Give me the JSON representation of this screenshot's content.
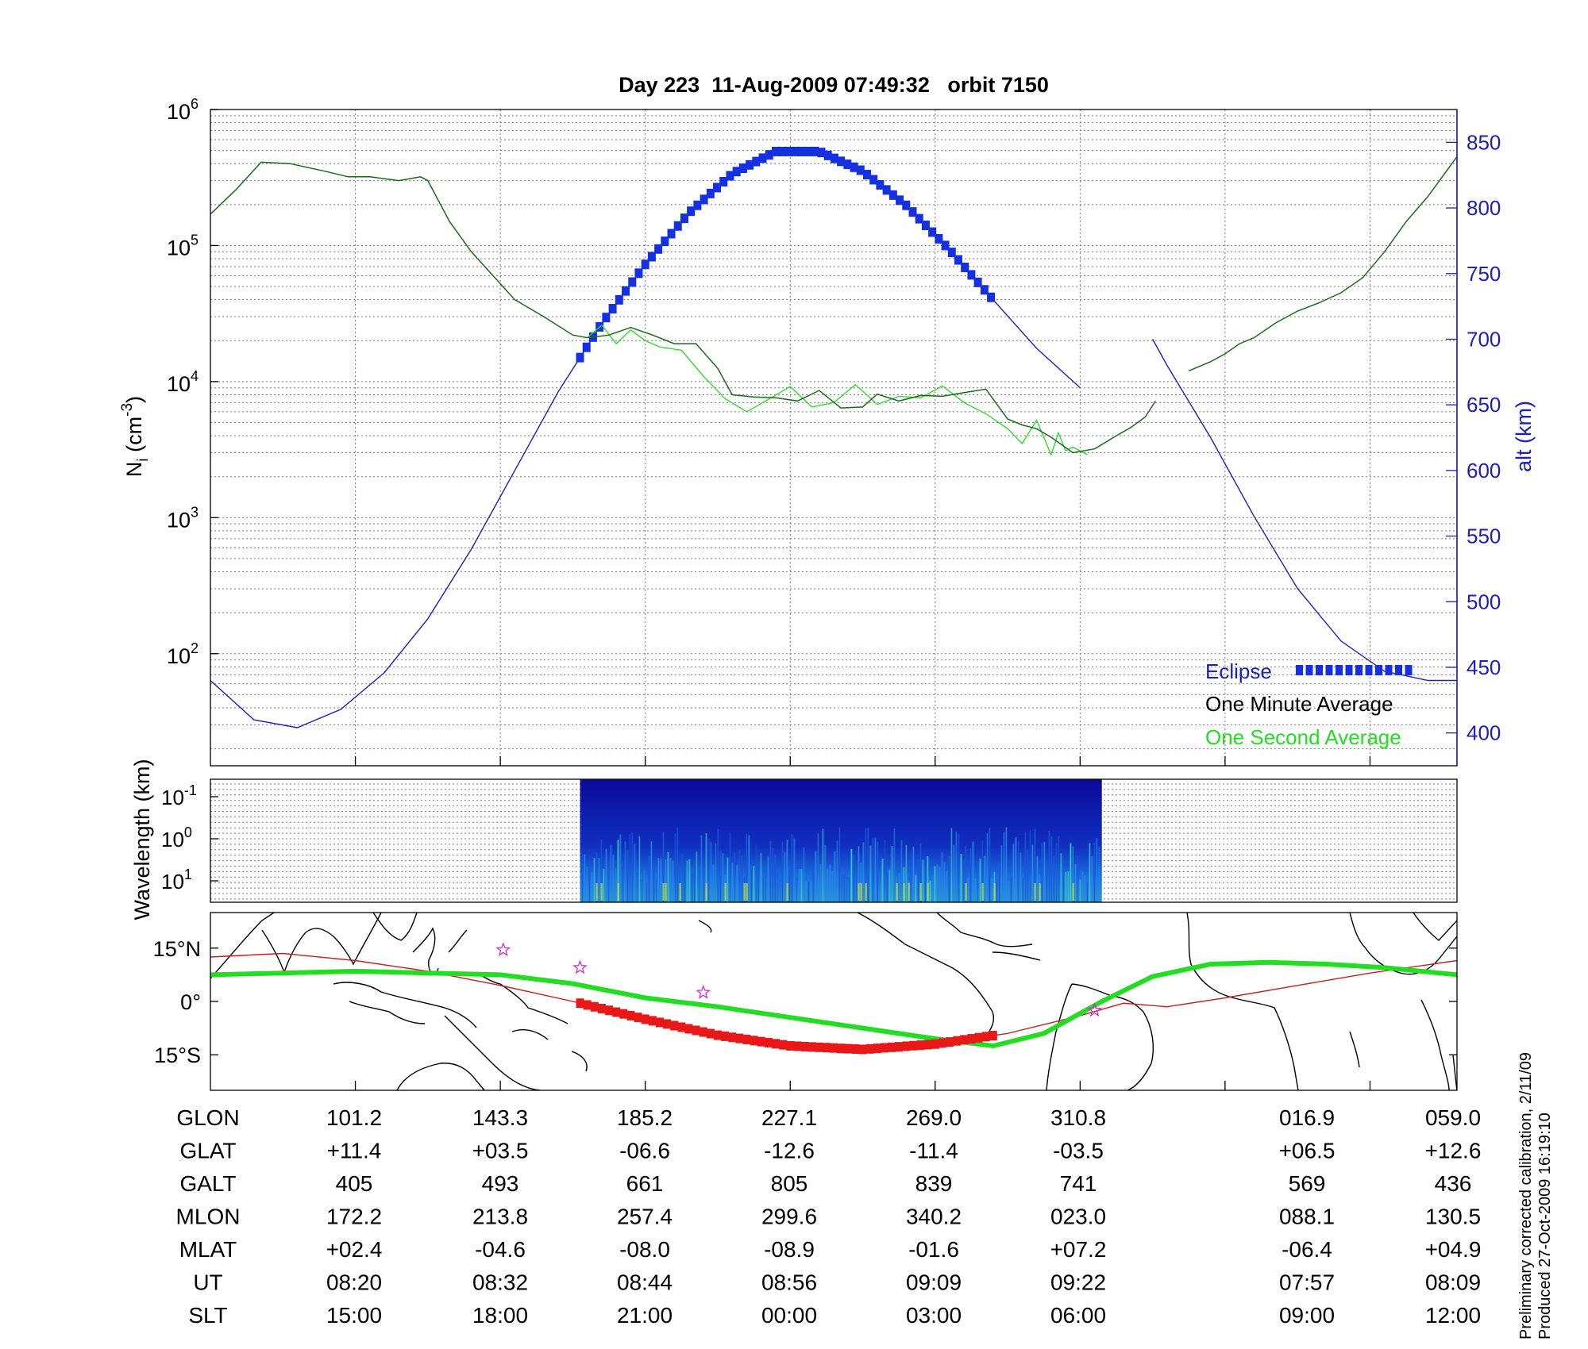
{
  "title": "Day 223  11-Aug-2009 07:49:32   orbit 7150",
  "footer": {
    "line1": "Preliminary corrected calibration, 2/11/09",
    "line2": "Produced 27-Oct-2009 16:19:10"
  },
  "colors": {
    "density_minute": "#1a6a1a",
    "density_second": "#22dd22",
    "altitude": "#1d1dc0",
    "eclipse": "#1530e0",
    "ground_track": "#22dd22",
    "mag_equator": "#c02020",
    "eclipse_track": "#e81818",
    "stars": "#cc33cc",
    "spectrogram_bg": "#1010a0"
  },
  "chart_data": [
    {
      "type": "line",
      "panel": "density",
      "title": "Day 223  11-Aug-2009 07:49:32   orbit 7150",
      "ylabel": "N_i (cm^-3)",
      "ylabel_parts": {
        "n": "N",
        "sub": "i",
        "unit": "(cm",
        "exp": "-3",
        "close": ")"
      },
      "yscale": "log",
      "ylim": [
        15,
        1000000
      ],
      "y_ticks": [
        {
          "value": 100,
          "base": "10",
          "exp": "2"
        },
        {
          "value": 1000,
          "base": "10",
          "exp": "3"
        },
        {
          "value": 10000,
          "base": "10",
          "exp": "4"
        },
        {
          "value": 100000,
          "base": "10",
          "exp": "5"
        },
        {
          "value": 1000000,
          "base": "10",
          "exp": "6"
        }
      ],
      "y2label": "alt (km)",
      "y2lim": [
        375,
        875
      ],
      "y2_ticks": [
        "400",
        "450",
        "500",
        "550",
        "600",
        "650",
        "700",
        "750",
        "800",
        "850"
      ],
      "xlim": [
        0,
        8.6
      ],
      "x_ticks": [
        1,
        2,
        3,
        4,
        5,
        6,
        7,
        8
      ],
      "grid": true,
      "legend_position": "bottom-right",
      "legend": [
        "Eclipse",
        "One Minute Average",
        "One Second Average"
      ],
      "series": [
        {
          "name": "One Minute Average",
          "x": [
            0,
            0.18,
            0.35,
            0.55,
            0.8,
            0.95,
            1.1,
            1.3,
            1.45,
            1.5,
            1.65,
            1.8,
            1.95,
            2.1,
            2.3,
            2.5,
            2.6,
            2.75,
            2.9,
            3.05,
            3.2,
            3.35,
            3.5,
            3.6,
            3.75,
            3.9,
            4.05,
            4.2,
            4.35,
            4.5,
            4.6,
            4.75,
            4.9,
            5.05,
            5.2,
            5.35,
            5.5,
            5.6,
            5.7,
            5.8,
            5.95,
            6.1,
            6.25,
            6.35,
            6.45,
            6.52,
            6.62,
            6.75,
            6.9,
            7.0,
            7.1,
            7.2,
            7.35,
            7.5,
            7.65,
            7.8,
            7.95,
            8.1,
            8.25,
            8.4,
            8.6
          ],
          "values": [
            170000,
            260000,
            410000,
            400000,
            350000,
            320000,
            320000,
            300000,
            320000,
            300000,
            150000,
            90000,
            60000,
            40000,
            30000,
            22000,
            21000,
            22000,
            25000,
            22000,
            19000,
            19000,
            12500,
            8000,
            7700,
            7600,
            7200,
            8600,
            6400,
            6500,
            8100,
            7200,
            7900,
            7800,
            8300,
            8800,
            5300,
            4800,
            4500,
            3900,
            3000,
            3200,
            4000,
            4600,
            5500,
            7200,
            null,
            12000,
            14000,
            16000,
            19000,
            21000,
            27000,
            33000,
            38000,
            45000,
            58000,
            90000,
            150000,
            230000,
            450000
          ]
        },
        {
          "name": "One Second Average",
          "x": [
            2.6,
            2.7,
            2.8,
            2.9,
            3.0,
            3.1,
            3.25,
            3.4,
            3.55,
            3.7,
            3.85,
            4.0,
            4.15,
            4.3,
            4.45,
            4.6,
            4.75,
            4.9,
            5.05,
            5.2,
            5.35,
            5.5,
            5.6,
            5.7,
            5.8,
            5.85,
            5.9,
            5.95,
            6.05
          ],
          "values": [
            21000,
            26000,
            19000,
            24000,
            20000,
            18000,
            17000,
            11000,
            7500,
            6000,
            7400,
            9200,
            6500,
            7000,
            9500,
            6800,
            7800,
            7600,
            9300,
            7000,
            5800,
            4500,
            3500,
            5200,
            2900,
            4200,
            3100,
            3300,
            2900
          ]
        },
        {
          "name": "Altitude",
          "axis": "right",
          "x": [
            0,
            0.3,
            0.6,
            0.9,
            1.2,
            1.5,
            1.8,
            2.1,
            2.4,
            2.7,
            3.0,
            3.3,
            3.6,
            3.9,
            4.2,
            4.5,
            4.8,
            5.1,
            5.4,
            5.7,
            6.0,
            6.3,
            6.5,
            6.6,
            6.9,
            7.2,
            7.5,
            7.8,
            8.1,
            8.4,
            8.6
          ],
          "values": [
            440,
            410,
            404,
            418,
            446,
            487,
            540,
            600,
            660,
            712,
            757,
            796,
            826,
            843,
            843,
            828,
            802,
            768,
            730,
            693,
            663,
            null,
            700,
            680,
            625,
            565,
            510,
            470,
            447,
            440,
            440
          ]
        }
      ],
      "eclipse": {
        "label": "Eclipse",
        "start": 2.55,
        "end": 5.4
      }
    },
    {
      "type": "heatmap",
      "panel": "spectrogram",
      "ylabel": "Wavelength (km)",
      "yscale": "log",
      "y_ticks": [
        {
          "base": "10",
          "exp": "-1"
        },
        {
          "base": "10",
          "exp": "0"
        },
        {
          "base": "10",
          "exp": "1"
        }
      ],
      "x_extent": [
        2.55,
        6.15
      ],
      "xlim": [
        0,
        8.6
      ]
    },
    {
      "type": "line",
      "panel": "ground_track",
      "y_ticks": [
        "15°N",
        "0°",
        "15°S"
      ],
      "ylim": [
        -25,
        25
      ],
      "xlim": [
        0,
        8.6
      ],
      "series": [
        {
          "name": "ground track",
          "x": [
            0,
            0.5,
            1.0,
            1.5,
            2.0,
            2.5,
            3.0,
            3.5,
            4.0,
            4.5,
            5.0,
            5.4,
            5.75,
            6.15,
            6.5,
            6.9,
            7.3,
            7.7,
            8.1,
            8.6
          ],
          "values": [
            7.5,
            8.0,
            8.5,
            8.0,
            7.5,
            5.0,
            1.0,
            -1.5,
            -4.5,
            -7.5,
            -10.5,
            -12.5,
            -9.0,
            0,
            7.0,
            10.5,
            11.0,
            10.5,
            9.5,
            7.5
          ]
        },
        {
          "name": "magnetic equator",
          "x": [
            0,
            0.5,
            1.0,
            1.5,
            2.0,
            2.5,
            3.0,
            3.5,
            4.0,
            4.5,
            5.0,
            5.5,
            6.0,
            6.3,
            6.6,
            7.0,
            7.5,
            8.0,
            8.6
          ],
          "values": [
            12.5,
            13.5,
            11.5,
            8.5,
            4.5,
            0,
            -5,
            -9.5,
            -12.5,
            -13.5,
            -12,
            -9,
            -4,
            -0.5,
            -1.5,
            1.0,
            4.5,
            8.0,
            11.5
          ]
        }
      ],
      "eclipse_segment": {
        "start": 2.55,
        "end": 5.4
      },
      "stars_x": [
        2.02,
        2.55,
        3.4,
        6.1
      ],
      "stars_y": [
        14.5,
        9.5,
        2.5,
        -2.5
      ]
    }
  ],
  "table": {
    "rows": [
      {
        "label": "GLON",
        "values": [
          "101.2",
          "143.3",
          "185.2",
          "227.1",
          "269.0",
          "310.8",
          "016.9",
          "059.0"
        ]
      },
      {
        "label": "GLAT",
        "values": [
          "+11.4",
          "+03.5",
          "-06.6",
          "-12.6",
          "-11.4",
          "-03.5",
          "+06.5",
          "+12.6"
        ]
      },
      {
        "label": "GALT",
        "values": [
          "405",
          "493",
          "661",
          "805",
          "839",
          "741",
          "569",
          "436"
        ]
      },
      {
        "label": "MLON",
        "values": [
          "172.2",
          "213.8",
          "257.4",
          "299.6",
          "340.2",
          "023.0",
          "088.1",
          "130.5"
        ]
      },
      {
        "label": "MLAT",
        "values": [
          "+02.4",
          "-04.6",
          "-08.0",
          "-08.9",
          "-01.6",
          "+07.2",
          "-06.4",
          "+04.9"
        ]
      },
      {
        "label": "UT",
        "values": [
          "08:20",
          "08:32",
          "08:44",
          "08:56",
          "09:09",
          "09:22",
          "07:57",
          "08:09"
        ]
      },
      {
        "label": "SLT",
        "values": [
          "15:00",
          "18:00",
          "21:00",
          "00:00",
          "03:00",
          "06:00",
          "09:00",
          "12:00"
        ]
      }
    ]
  }
}
